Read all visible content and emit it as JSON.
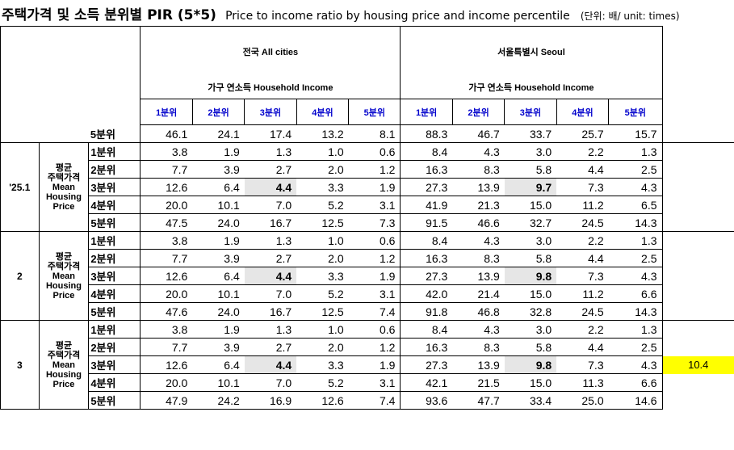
{
  "title": {
    "ko": "주택가격 및 소득 분위별 PIR (5*5)",
    "en": "Price to income ratio by housing price and income percentile",
    "unit": "(단위: 배/ unit: times)"
  },
  "header": {
    "national": "전국 All cities",
    "seoul": "서울특별시 Seoul",
    "household_income": "가구 연소득 Household Income",
    "quintiles": [
      "1분위",
      "2분위",
      "3분위",
      "4분위",
      "5분위"
    ]
  },
  "group_label": [
    "평균",
    "주택가격",
    "Mean",
    "Housing",
    "Price"
  ],
  "top_row": {
    "label": "5분위",
    "values": [
      "46.1",
      "24.1",
      "17.4",
      "13.2",
      "8.1",
      "88.3",
      "46.7",
      "33.7",
      "25.7",
      "15.7"
    ]
  },
  "blocks": [
    {
      "period": "'25.1",
      "rows": [
        {
          "label": "1분위",
          "values": [
            "3.8",
            "1.9",
            "1.3",
            "1.0",
            "0.6",
            "8.4",
            "4.3",
            "3.0",
            "2.2",
            "1.3"
          ]
        },
        {
          "label": "2분위",
          "values": [
            "7.7",
            "3.9",
            "2.7",
            "2.0",
            "1.2",
            "16.3",
            "8.3",
            "5.8",
            "4.4",
            "2.5"
          ]
        },
        {
          "label": "3분위",
          "values": [
            "12.6",
            "6.4",
            "4.4",
            "3.3",
            "1.9",
            "27.3",
            "13.9",
            "9.7",
            "7.3",
            "4.3"
          ]
        },
        {
          "label": "4분위",
          "values": [
            "20.0",
            "10.1",
            "7.0",
            "5.2",
            "3.1",
            "41.9",
            "21.3",
            "15.0",
            "11.2",
            "6.5"
          ]
        },
        {
          "label": "5분위",
          "values": [
            "47.5",
            "24.0",
            "16.7",
            "12.5",
            "7.3",
            "91.5",
            "46.6",
            "32.7",
            "24.5",
            "14.3"
          ]
        }
      ]
    },
    {
      "period": "2",
      "rows": [
        {
          "label": "1분위",
          "values": [
            "3.8",
            "1.9",
            "1.3",
            "1.0",
            "0.6",
            "8.4",
            "4.3",
            "3.0",
            "2.2",
            "1.3"
          ]
        },
        {
          "label": "2분위",
          "values": [
            "7.7",
            "3.9",
            "2.7",
            "2.0",
            "1.2",
            "16.3",
            "8.3",
            "5.8",
            "4.4",
            "2.5"
          ]
        },
        {
          "label": "3분위",
          "values": [
            "12.6",
            "6.4",
            "4.4",
            "3.3",
            "1.9",
            "27.3",
            "13.9",
            "9.8",
            "7.3",
            "4.3"
          ]
        },
        {
          "label": "4분위",
          "values": [
            "20.0",
            "10.1",
            "7.0",
            "5.2",
            "3.1",
            "42.0",
            "21.4",
            "15.0",
            "11.2",
            "6.6"
          ]
        },
        {
          "label": "5분위",
          "values": [
            "47.6",
            "24.0",
            "16.7",
            "12.5",
            "7.4",
            "91.8",
            "46.8",
            "32.8",
            "24.5",
            "14.3"
          ]
        }
      ]
    },
    {
      "period": "3",
      "rows": [
        {
          "label": "1분위",
          "values": [
            "3.8",
            "1.9",
            "1.3",
            "1.0",
            "0.6",
            "8.4",
            "4.3",
            "3.0",
            "2.2",
            "1.3"
          ]
        },
        {
          "label": "2분위",
          "values": [
            "7.7",
            "3.9",
            "2.7",
            "2.0",
            "1.2",
            "16.3",
            "8.3",
            "5.8",
            "4.4",
            "2.5"
          ]
        },
        {
          "label": "3분위",
          "values": [
            "12.6",
            "6.4",
            "4.4",
            "3.3",
            "1.9",
            "27.3",
            "13.9",
            "9.8",
            "7.3",
            "4.3"
          ],
          "extra": "10.4"
        },
        {
          "label": "4분위",
          "values": [
            "20.0",
            "10.1",
            "7.0",
            "5.2",
            "3.1",
            "42.1",
            "21.5",
            "15.0",
            "11.3",
            "6.6"
          ]
        },
        {
          "label": "5분위",
          "values": [
            "47.9",
            "24.2",
            "16.9",
            "12.6",
            "7.4",
            "93.6",
            "47.7",
            "33.4",
            "25.0",
            "14.6"
          ]
        }
      ]
    }
  ],
  "colors": {
    "highlight": "#e6e6e6",
    "extra_cell": "#ffff00",
    "quintile_header": "#0000cc"
  }
}
